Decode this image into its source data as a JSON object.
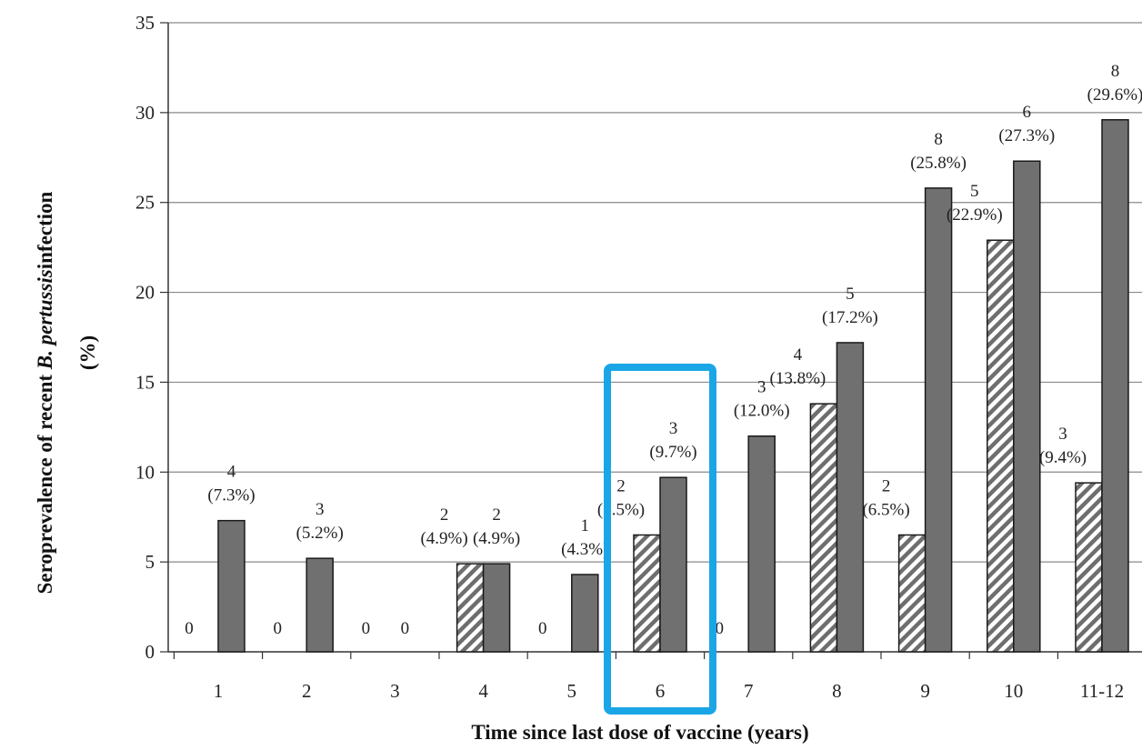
{
  "chart_data": {
    "type": "bar",
    "xlabel": "Time since last dose of vaccine (years)",
    "ylabel_prefix": "Seroprevalence of recent ",
    "ylabel_italic": "B. pertussis",
    "ylabel_suffix": "infection",
    "ylabel_line2": "(%)",
    "ylim": [
      0,
      35
    ],
    "yticks": [
      0,
      5,
      10,
      15,
      20,
      25,
      30,
      35
    ],
    "grid": true,
    "categories": [
      "1",
      "2",
      "3",
      "4",
      "5",
      "6",
      "7",
      "8",
      "9",
      "10",
      "11-12"
    ],
    "series": [
      {
        "pattern": "hatched",
        "values": [
          0,
          0,
          0,
          4.9,
          0,
          6.5,
          0,
          13.8,
          6.5,
          22.9,
          9.4
        ],
        "count_labels": [
          "0",
          "0",
          "0",
          "2",
          "0",
          "2",
          "0",
          "4",
          "2",
          "5",
          "3"
        ],
        "pct_labels": [
          "",
          "",
          "",
          "(4.9%)",
          "",
          "(6.5%)",
          "",
          "(13.8%)",
          "(6.5%)",
          "(22.9%)",
          "(9.4%)"
        ]
      },
      {
        "pattern": "solid",
        "values": [
          7.3,
          5.2,
          0,
          4.9,
          4.3,
          9.7,
          12.0,
          17.2,
          25.8,
          27.3,
          29.6
        ],
        "count_labels": [
          "4",
          "3",
          "0",
          "2",
          "1",
          "3",
          "3",
          "5",
          "8",
          "6",
          "8"
        ],
        "pct_labels": [
          "(7.3%)",
          "(5.2%)",
          "",
          "(4.9%)",
          "(4.3%)",
          "(9.7%)",
          "(12.0%)",
          "(17.2%)",
          "(25.8%)",
          "(27.3%)",
          "(29.6%)"
        ]
      }
    ],
    "highlight_category": "6",
    "colors": {
      "solid_bar": "#707070",
      "hatch_bg": "#ffffff",
      "hatch_line": "#6e6e6e",
      "bar_outline": "#1a1a1a",
      "grid": "#8a8a8a",
      "highlight": "#1aa6e6"
    }
  }
}
